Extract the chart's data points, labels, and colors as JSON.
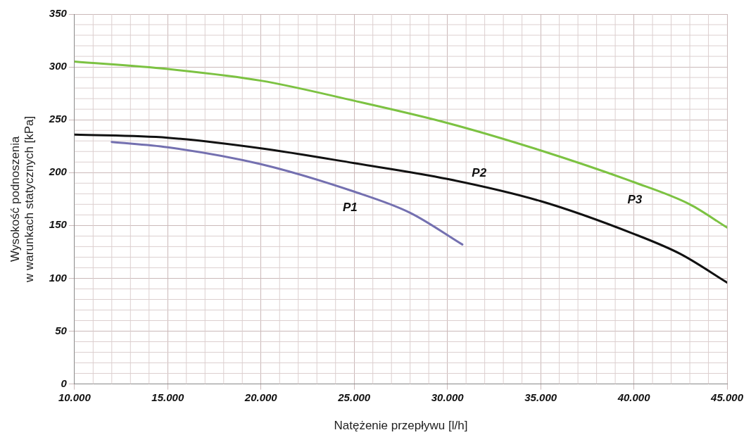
{
  "chart_data": {
    "type": "line",
    "xlabel": "Natężenie przepływu [l/h]",
    "ylabel": "Wysokość podnoszenia\nw warunkach statycznych [kPa]",
    "xlim": [
      10000,
      45000
    ],
    "ylim": [
      0,
      350
    ],
    "xticks": [
      {
        "value": 10000,
        "label": "10.000"
      },
      {
        "value": 15000,
        "label": "15.000"
      },
      {
        "value": 20000,
        "label": "20.000"
      },
      {
        "value": 25000,
        "label": "25.000"
      },
      {
        "value": 30000,
        "label": "30.000"
      },
      {
        "value": 35000,
        "label": "35.000"
      },
      {
        "value": 40000,
        "label": "40.000"
      },
      {
        "value": 45000,
        "label": "45.000"
      }
    ],
    "yticks": [
      0,
      50,
      100,
      150,
      200,
      250,
      300,
      350
    ],
    "grid": true,
    "legend": false,
    "marker": "none",
    "line_style": "solid",
    "series": [
      {
        "name": "P1",
        "color": "#7470b0",
        "x": [
          12000,
          15000,
          20000,
          25000,
          28000,
          30800
        ],
        "values": [
          229,
          224,
          208,
          182,
          162,
          132
        ]
      },
      {
        "name": "P2",
        "color": "#111111",
        "x": [
          10000,
          15000,
          20000,
          25000,
          30000,
          35000,
          40000,
          42500,
          45000
        ],
        "values": [
          236,
          233,
          223,
          209,
          194,
          173,
          142,
          123,
          96
        ]
      },
      {
        "name": "P3",
        "color": "#7cc242",
        "x": [
          10000,
          15000,
          20000,
          25000,
          30000,
          35000,
          40000,
          43000,
          45000
        ],
        "values": [
          305,
          298,
          287,
          268,
          247,
          221,
          191,
          170,
          148
        ]
      }
    ]
  }
}
